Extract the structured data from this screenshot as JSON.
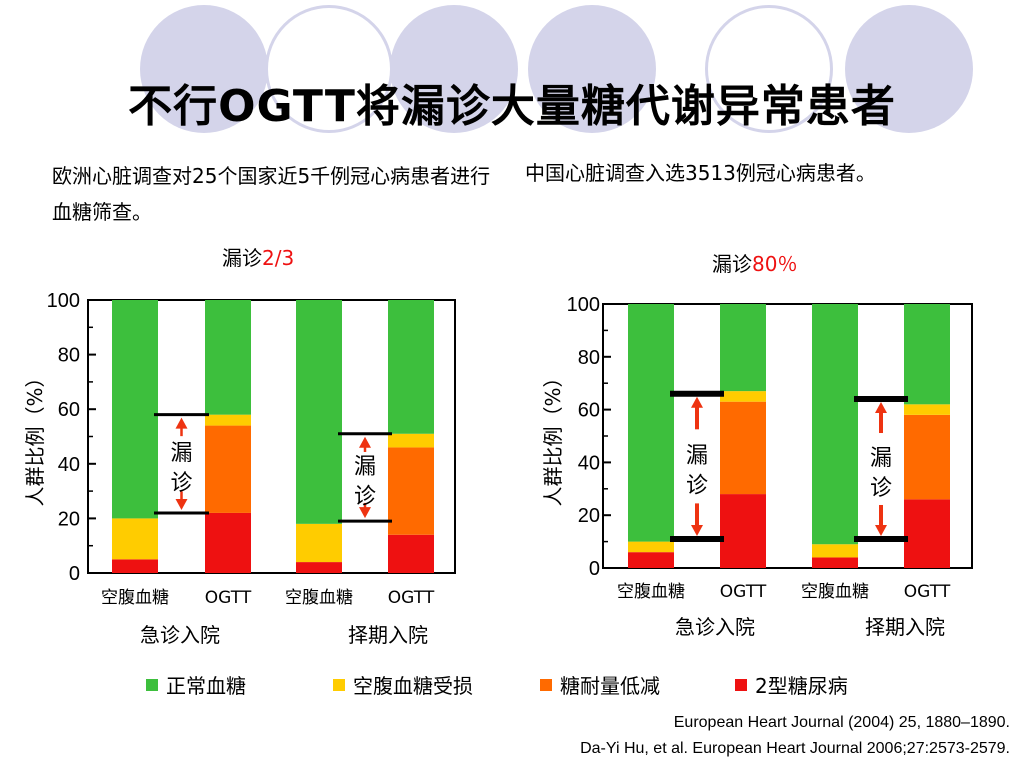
{
  "title": "不行OGTT将漏诊大量糖代谢异常患者",
  "left_text": "欧洲心脏调查对25个国家近5千例冠心病患者进行血糖筛查。",
  "right_text": "中国心脏调查入选3513例冠心病患者。",
  "left_miss_prefix": "漏诊",
  "left_miss_value": "2/3",
  "right_miss_prefix": "漏诊",
  "right_miss_value": "80％",
  "annotation": [
    "漏",
    "诊"
  ],
  "legend": [
    {
      "label": "正常血糖",
      "color": "#3dbf3d"
    },
    {
      "label": "空腹血糖受损",
      "color": "#ffcc00"
    },
    {
      "label": "糖耐量低减",
      "color": "#ff6a00"
    },
    {
      "label": "2型糖尿病",
      "color": "#ee1111"
    }
  ],
  "citations": [
    "European Heart Journal (2004) 25, 1880–1890.",
    "Da-Yi Hu, et al. European Heart Journal 2006;27:2573-2579."
  ],
  "colors": {
    "normal": "#3dbf3d",
    "ifg": "#ffcc00",
    "igt": "#ff6a00",
    "dm": "#ee1111",
    "arrow": "#ee3311"
  },
  "chart_data": [
    {
      "type": "bar",
      "stacked": true,
      "ylabel": "人群比例（%）",
      "ylim": [
        0,
        100
      ],
      "yticks": [
        0,
        20,
        40,
        60,
        80,
        100
      ],
      "bar_labels": [
        "空腹血糖",
        "OGTT",
        "空腹血糖",
        "OGTT"
      ],
      "groups": [
        "急诊入院",
        "择期入院"
      ],
      "series": [
        {
          "name": "2型糖尿病",
          "values": [
            5,
            22,
            4,
            14
          ]
        },
        {
          "name": "糖耐量低减",
          "values": [
            0,
            32,
            0,
            32
          ]
        },
        {
          "name": "空腹血糖受损",
          "values": [
            15,
            4,
            14,
            5
          ]
        },
        {
          "name": "正常血糖",
          "values": [
            80,
            42,
            82,
            49
          ]
        }
      ],
      "missed_ranges": [
        [
          22,
          58
        ],
        [
          19,
          51
        ]
      ]
    },
    {
      "type": "bar",
      "stacked": true,
      "ylabel": "人群比例（%）",
      "ylim": [
        0,
        100
      ],
      "yticks": [
        0,
        20,
        40,
        60,
        80,
        100
      ],
      "bar_labels": [
        "空腹血糖",
        "OGTT",
        "空腹血糖",
        "OGTT"
      ],
      "groups": [
        "急诊入院",
        "择期入院"
      ],
      "series": [
        {
          "name": "2型糖尿病",
          "values": [
            6,
            28,
            4,
            26
          ]
        },
        {
          "name": "糖耐量低减",
          "values": [
            0,
            35,
            0,
            32
          ]
        },
        {
          "name": "空腹血糖受损",
          "values": [
            4,
            4,
            5,
            4
          ]
        },
        {
          "name": "正常血糖",
          "values": [
            90,
            33,
            91,
            38
          ]
        }
      ],
      "missed_ranges": [
        [
          11,
          66
        ],
        [
          11,
          64
        ]
      ]
    }
  ]
}
